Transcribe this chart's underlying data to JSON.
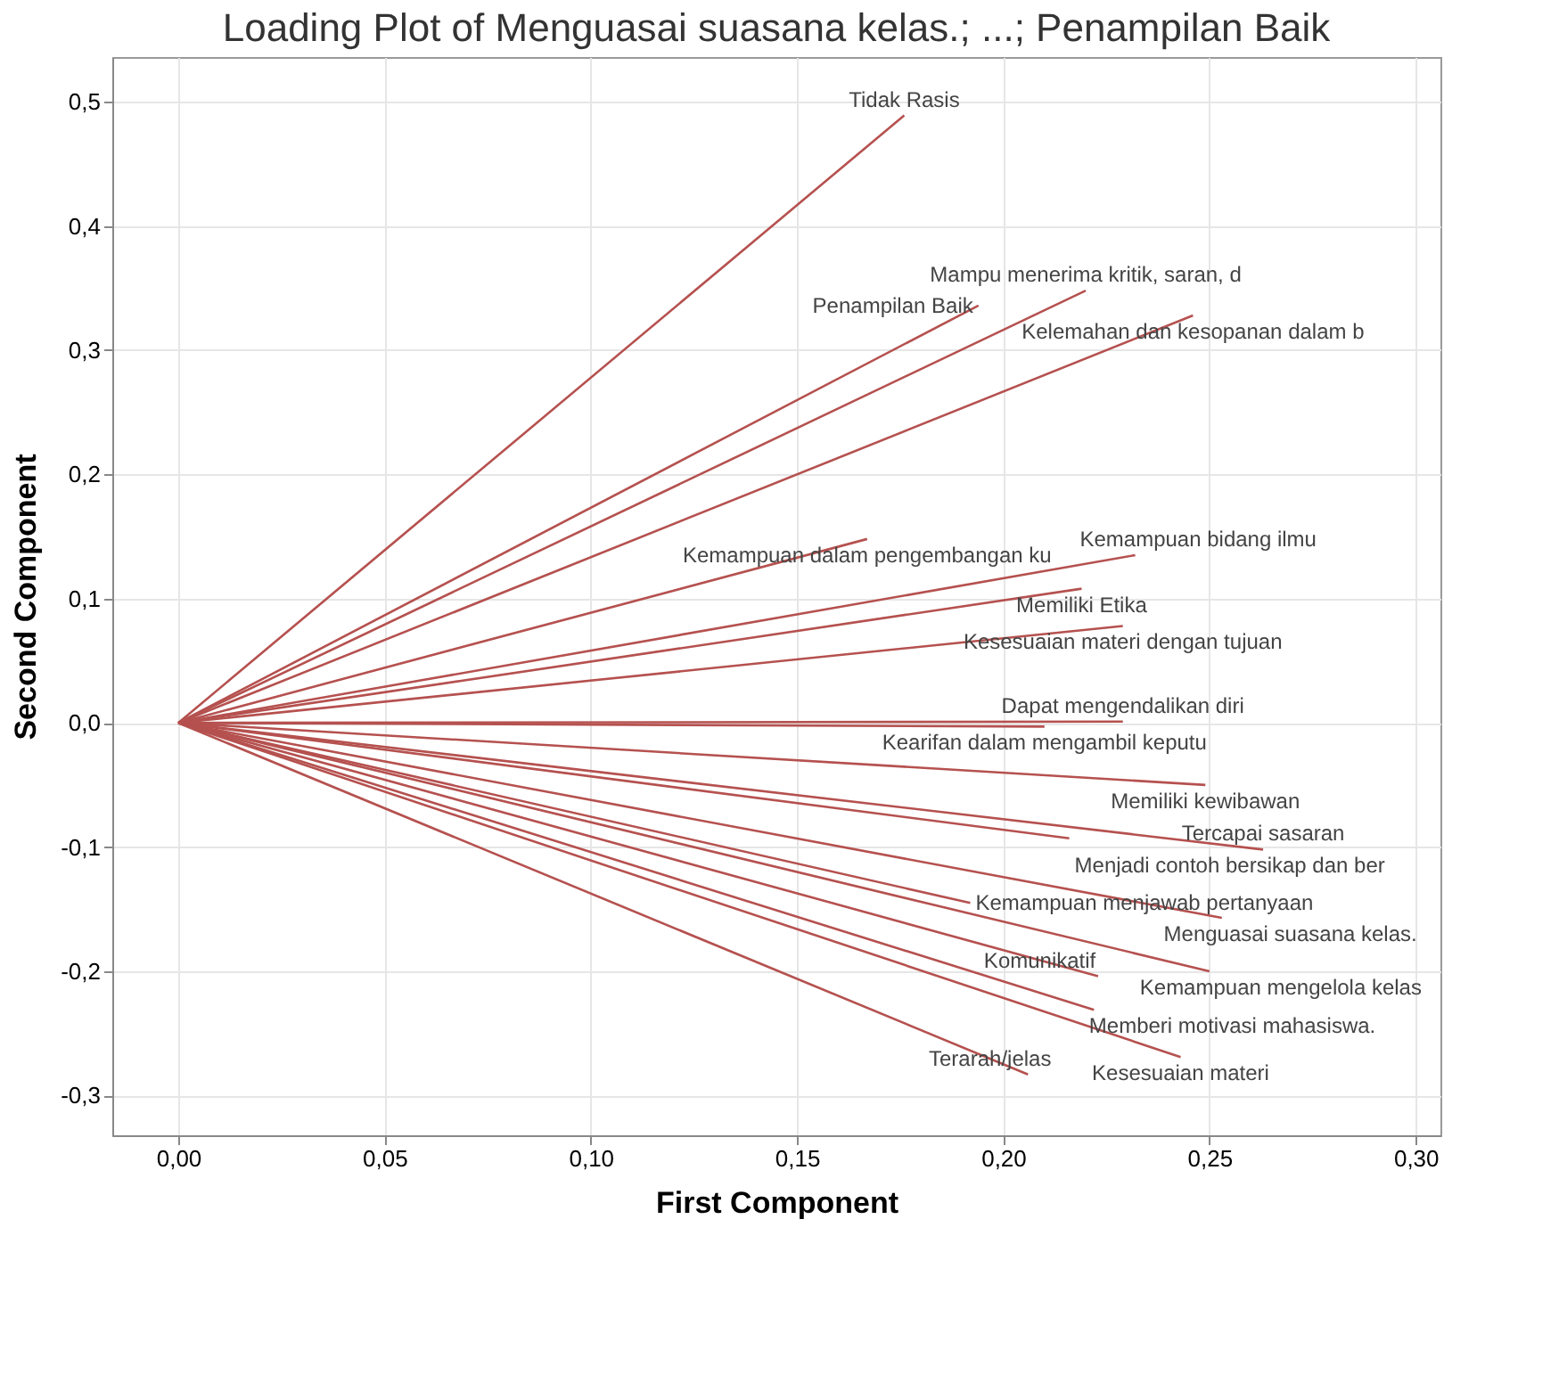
{
  "chart_data": {
    "type": "line",
    "title": "Loading Plot of Menguasai suasana kelas.; ...; Penampilan Baik",
    "xlabel": "First Component",
    "ylabel": "Second Component",
    "xlim": [
      -0.016,
      0.306
    ],
    "ylim": [
      -0.332,
      0.536
    ],
    "xticks": [
      {
        "value": 0,
        "label": "0,00"
      },
      {
        "value": 0.05,
        "label": "0,05"
      },
      {
        "value": 0.1,
        "label": "0,10"
      },
      {
        "value": 0.15,
        "label": "0,15"
      },
      {
        "value": 0.2,
        "label": "0,20"
      },
      {
        "value": 0.25,
        "label": "0,25"
      },
      {
        "value": 0.3,
        "label": "0,30"
      }
    ],
    "yticks": [
      {
        "value": -0.3,
        "label": "-0,3"
      },
      {
        "value": -0.2,
        "label": "-0,2"
      },
      {
        "value": -0.1,
        "label": "-0,1"
      },
      {
        "value": 0,
        "label": "0,0"
      },
      {
        "value": 0.1,
        "label": "0,1"
      },
      {
        "value": 0.2,
        "label": "0,2"
      },
      {
        "value": 0.3,
        "label": "0,3"
      },
      {
        "value": 0.4,
        "label": "0,4"
      },
      {
        "value": 0.5,
        "label": "0,5"
      }
    ],
    "grid": true,
    "legend": false,
    "marker": "none",
    "line_style": "solid",
    "series": [
      {
        "name": "Tidak Rasis",
        "color": "#b5514f",
        "x": [
          0,
          0.176
        ],
        "values": [
          0,
          0.489
        ]
      },
      {
        "name": "Penampilan Baik",
        "color": "#b5514f",
        "x": [
          0,
          0.194
        ],
        "values": [
          0,
          0.336
        ]
      },
      {
        "name": "Mampu menerima kritik, saran, d",
        "color": "#b5514f",
        "x": [
          0,
          0.22
        ],
        "values": [
          0,
          0.348
        ]
      },
      {
        "name": "Kelemahan dan kesopanan dalam b",
        "color": "#b5514f",
        "x": [
          0,
          0.246
        ],
        "values": [
          0,
          0.328
        ]
      },
      {
        "name": "Kemampuan dalam pengembangan ku",
        "color": "#b5514f",
        "x": [
          0,
          0.167
        ],
        "values": [
          0,
          0.148
        ]
      },
      {
        "name": "Kemampuan  bidang ilmu",
        "color": "#b5514f",
        "x": [
          0,
          0.232
        ],
        "values": [
          0,
          0.135
        ]
      },
      {
        "name": "Memiliki Etika",
        "color": "#b5514f",
        "x": [
          0,
          0.219
        ],
        "values": [
          0,
          0.108
        ]
      },
      {
        "name": "Kesesuaian materi dengan tujuan",
        "color": "#b5514f",
        "x": [
          0,
          0.229
        ],
        "values": [
          0,
          0.078
        ]
      },
      {
        "name": "Kearifan dalam mengambil keputu",
        "color": "#b5514f",
        "x": [
          0,
          0.21
        ],
        "values": [
          0,
          -0.003
        ]
      },
      {
        "name": "Dapat mengendalikan diri",
        "color": "#b5514f",
        "x": [
          0,
          0.229
        ],
        "values": [
          0,
          0.001
        ]
      },
      {
        "name": "Memiliki kewibawan",
        "color": "#b5514f",
        "x": [
          0,
          0.249
        ],
        "values": [
          0,
          -0.05
        ]
      },
      {
        "name": "Menjadi contoh bersikap dan ber",
        "color": "#b5514f",
        "x": [
          0,
          0.216
        ],
        "values": [
          0,
          -0.093
        ]
      },
      {
        "name": "Tercapai sasaran",
        "color": "#b5514f",
        "x": [
          0,
          0.263
        ],
        "values": [
          0,
          -0.102
        ]
      },
      {
        "name": "Menguasai suasana kelas.",
        "color": "#b5514f",
        "x": [
          0,
          0.253
        ],
        "values": [
          0,
          -0.157
        ]
      },
      {
        "name": "Kemampuan menjawab pertanyaan",
        "color": "#b5514f",
        "x": [
          0,
          0.192
        ],
        "values": [
          0,
          -0.145
        ]
      },
      {
        "name": "Kemampuan mengelola kelas",
        "color": "#b5514f",
        "x": [
          0,
          0.25
        ],
        "values": [
          0,
          -0.2
        ]
      },
      {
        "name": "Komunikatif",
        "color": "#b5514f",
        "x": [
          0,
          0.223
        ],
        "values": [
          0,
          -0.204
        ]
      },
      {
        "name": "Memberi motivasi mahasiswa.",
        "color": "#b5514f",
        "x": [
          0,
          0.222
        ],
        "values": [
          0,
          -0.231
        ]
      },
      {
        "name": "Kesesuaian materi",
        "color": "#b5514f",
        "x": [
          0,
          0.243
        ],
        "values": [
          0,
          -0.269
        ]
      },
      {
        "name": "Terarah/jelas",
        "color": "#b5514f",
        "x": [
          0,
          0.206
        ],
        "values": [
          0,
          -0.283
        ]
      }
    ]
  }
}
